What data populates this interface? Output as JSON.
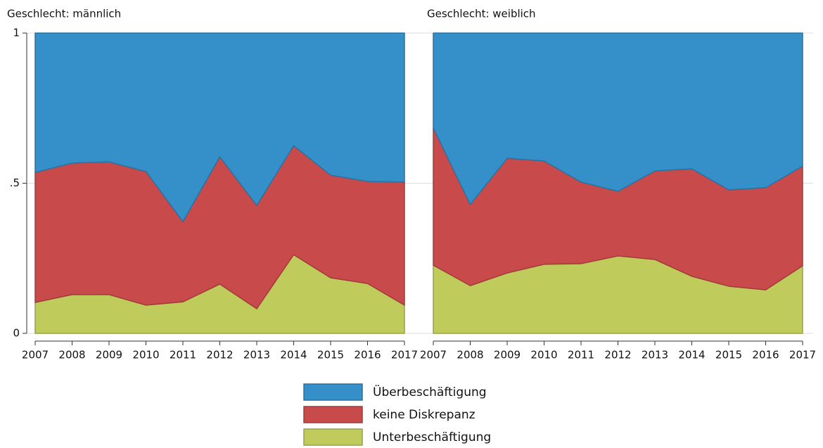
{
  "chart_data": [
    {
      "type": "area",
      "title": "Geschlecht: männlich",
      "x": [
        2007,
        2008,
        2009,
        2010,
        2011,
        2012,
        2013,
        2014,
        2015,
        2016,
        2017
      ],
      "xlim": [
        2007,
        2017
      ],
      "xticks": [
        2007,
        2008,
        2009,
        2010,
        2011,
        2012,
        2013,
        2014,
        2015,
        2016,
        2017
      ],
      "ylim": [
        0,
        1
      ],
      "yticks": [
        0,
        {
          "value": 0.5,
          "label": ".5"
        },
        1
      ],
      "grid": true,
      "series": [
        {
          "name": "Unterbeschäftigung",
          "color": "#bfcb5a",
          "values": [
            0.103,
            0.129,
            0.129,
            0.094,
            0.105,
            0.164,
            0.082,
            0.262,
            0.185,
            0.166,
            0.094
          ]
        },
        {
          "name": "keine Diskrepanz",
          "color": "#c94a4a",
          "values": [
            0.433,
            0.438,
            0.442,
            0.445,
            0.267,
            0.424,
            0.344,
            0.363,
            0.342,
            0.34,
            0.41
          ]
        },
        {
          "name": "Überbeschäftigung",
          "color": "#3590c9",
          "values": [
            0.464,
            0.433,
            0.429,
            0.461,
            0.628,
            0.412,
            0.574,
            0.375,
            0.473,
            0.494,
            0.496
          ]
        }
      ]
    },
    {
      "type": "area",
      "title": "Geschlecht: weiblich",
      "x": [
        2007,
        2008,
        2009,
        2010,
        2011,
        2012,
        2013,
        2014,
        2015,
        2016,
        2017
      ],
      "xlim": [
        2007,
        2017
      ],
      "xticks": [
        2007,
        2008,
        2009,
        2010,
        2011,
        2012,
        2013,
        2014,
        2015,
        2016,
        2017
      ],
      "ylim": [
        0,
        1
      ],
      "yticks": [
        0,
        0.5,
        1
      ],
      "grid": true,
      "series": [
        {
          "color": "#bfcb5a",
          "values": [
            0.227,
            0.159,
            0.201,
            0.23,
            0.232,
            0.258,
            0.246,
            0.19,
            0.157,
            0.145,
            0.225
          ]
        },
        {
          "color": "#c94a4a",
          "values": [
            0.457,
            0.27,
            0.382,
            0.344,
            0.272,
            0.215,
            0.295,
            0.358,
            0.321,
            0.34,
            0.332
          ]
        },
        {
          "color": "#3590c9",
          "values": [
            0.316,
            0.571,
            0.417,
            0.426,
            0.496,
            0.527,
            0.459,
            0.452,
            0.522,
            0.515,
            0.443
          ]
        }
      ]
    }
  ]
}
